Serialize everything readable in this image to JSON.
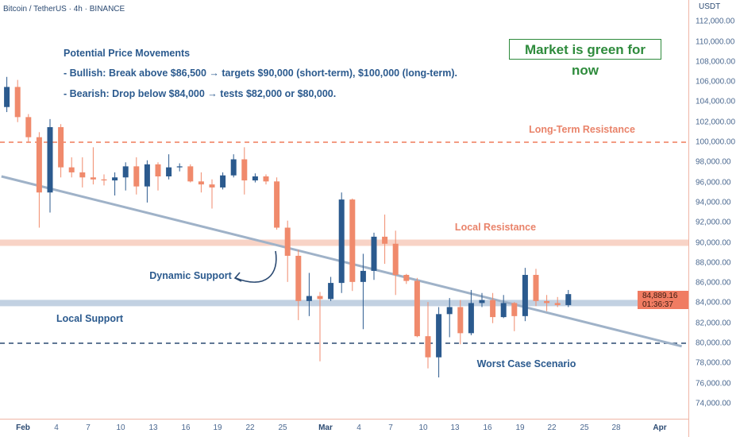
{
  "header": {
    "symbol_title": "Bitcoin / TetherUS · 4h · BINANCE"
  },
  "notes": {
    "title": "Potential Price Movements",
    "bullish": "- Bullish: Break above $86,500 → targets $90,000 (short-term), $100,000 (long-term).",
    "bearish": "- Bearish: Drop below $84,000 → tests $82,000 or $80,000."
  },
  "callout": {
    "text": "Market is green for now",
    "color": "#2e8b3c"
  },
  "labels": {
    "long_term_resistance": "Long-Term Resistance",
    "local_resistance": "Local Resistance",
    "dynamic_support": "Dynamic Support",
    "local_support": "Local Support",
    "worst_case": "Worst Case Scenario"
  },
  "price_axis": {
    "unit": "USDT",
    "ticks": [
      "112,000.00",
      "110,000.00",
      "108,000.00",
      "106,000.00",
      "104,000.00",
      "102,000.00",
      "100,000.00",
      "98,000.00",
      "96,000.00",
      "94,000.00",
      "92,000.00",
      "90,000.00",
      "88,000.00",
      "86,000.00",
      "84,000.00",
      "82,000.00",
      "80,000.00",
      "78,000.00",
      "76,000.00",
      "74,000.00"
    ],
    "current_price": "84,889.16",
    "countdown": "01:36:37"
  },
  "time_axis": {
    "ticks": [
      "Feb",
      "4",
      "7",
      "10",
      "13",
      "16",
      "19",
      "22",
      "25",
      "Mar",
      "4",
      "7",
      "10",
      "13",
      "16",
      "19",
      "22",
      "25",
      "28",
      "Apr"
    ]
  },
  "colors": {
    "up": "#2b5a8e",
    "down": "#f08a6c",
    "resistance": "#ef7c5a",
    "support": "#2b4a72",
    "trendline": "#9fb2c8"
  },
  "chart_data": {
    "type": "candlestick",
    "title": "Bitcoin / TetherUS · 4h · BINANCE",
    "ylim": [
      73000,
      113000
    ],
    "grid": false,
    "candles": [
      {
        "d": "Jan 30",
        "o": 103500,
        "h": 106500,
        "l": 103000,
        "c": 105500
      },
      {
        "d": "Jan 31",
        "o": 105500,
        "h": 106200,
        "l": 102000,
        "c": 102500
      },
      {
        "d": "Feb 1",
        "o": 102500,
        "h": 102800,
        "l": 100000,
        "c": 100500
      },
      {
        "d": "Feb 2",
        "o": 100500,
        "h": 101000,
        "l": 91500,
        "c": 95000
      },
      {
        "d": "Feb 3",
        "o": 95000,
        "h": 102300,
        "l": 93000,
        "c": 101500
      },
      {
        "d": "Feb 4",
        "o": 101500,
        "h": 101800,
        "l": 96500,
        "c": 97500
      },
      {
        "d": "Feb 5",
        "o": 97500,
        "h": 98500,
        "l": 96500,
        "c": 97000
      },
      {
        "d": "Feb 6",
        "o": 97000,
        "h": 98500,
        "l": 95500,
        "c": 96500
      },
      {
        "d": "Feb 7",
        "o": 96500,
        "h": 99500,
        "l": 95800,
        "c": 96300
      },
      {
        "d": "Feb 8",
        "o": 96300,
        "h": 96800,
        "l": 95700,
        "c": 96200
      },
      {
        "d": "Feb 9",
        "o": 96200,
        "h": 97000,
        "l": 94700,
        "c": 96500
      },
      {
        "d": "Feb 10",
        "o": 96500,
        "h": 98000,
        "l": 95200,
        "c": 97600
      },
      {
        "d": "Feb 11",
        "o": 97600,
        "h": 98500,
        "l": 94800,
        "c": 95600
      },
      {
        "d": "Feb 12",
        "o": 95600,
        "h": 98200,
        "l": 94000,
        "c": 97800
      },
      {
        "d": "Feb 13",
        "o": 97800,
        "h": 98000,
        "l": 95200,
        "c": 96600
      },
      {
        "d": "Feb 14",
        "o": 96600,
        "h": 98800,
        "l": 96300,
        "c": 97500
      },
      {
        "d": "Feb 15",
        "o": 97500,
        "h": 97900,
        "l": 97100,
        "c": 97600
      },
      {
        "d": "Feb 16",
        "o": 97600,
        "h": 97800,
        "l": 96000,
        "c": 96100
      },
      {
        "d": "Feb 17",
        "o": 96100,
        "h": 97000,
        "l": 95000,
        "c": 95800
      },
      {
        "d": "Feb 18",
        "o": 95800,
        "h": 96300,
        "l": 93400,
        "c": 95500
      },
      {
        "d": "Feb 19",
        "o": 95500,
        "h": 97000,
        "l": 95300,
        "c": 96700
      },
      {
        "d": "Feb 20",
        "o": 96700,
        "h": 98800,
        "l": 96500,
        "c": 98300
      },
      {
        "d": "Feb 21",
        "o": 98300,
        "h": 99500,
        "l": 94800,
        "c": 96200
      },
      {
        "d": "Feb 22",
        "o": 96200,
        "h": 96900,
        "l": 96000,
        "c": 96600
      },
      {
        "d": "Feb 23",
        "o": 96600,
        "h": 96800,
        "l": 95800,
        "c": 96100
      },
      {
        "d": "Feb 24",
        "o": 96100,
        "h": 96500,
        "l": 91300,
        "c": 91500
      },
      {
        "d": "Feb 25",
        "o": 91500,
        "h": 92200,
        "l": 86100,
        "c": 88700
      },
      {
        "d": "Feb 26",
        "o": 88700,
        "h": 89300,
        "l": 82300,
        "c": 84200
      },
      {
        "d": "Feb 27",
        "o": 84200,
        "h": 87000,
        "l": 82700,
        "c": 84700
      },
      {
        "d": "Feb 28",
        "o": 84700,
        "h": 85100,
        "l": 78200,
        "c": 84400
      },
      {
        "d": "Mar 1",
        "o": 84400,
        "h": 86600,
        "l": 84200,
        "c": 86000
      },
      {
        "d": "Mar 2",
        "o": 86000,
        "h": 95000,
        "l": 85000,
        "c": 94300
      },
      {
        "d": "Mar 3",
        "o": 94300,
        "h": 94400,
        "l": 85200,
        "c": 86100
      },
      {
        "d": "Mar 4",
        "o": 86100,
        "h": 88900,
        "l": 81400,
        "c": 87200
      },
      {
        "d": "Mar 5",
        "o": 87200,
        "h": 91000,
        "l": 86300,
        "c": 90600
      },
      {
        "d": "Mar 6",
        "o": 90600,
        "h": 92800,
        "l": 87900,
        "c": 89900
      },
      {
        "d": "Mar 7",
        "o": 89900,
        "h": 91200,
        "l": 84800,
        "c": 86800
      },
      {
        "d": "Mar 8",
        "o": 86800,
        "h": 86900,
        "l": 85900,
        "c": 86200
      },
      {
        "d": "Mar 9",
        "o": 86200,
        "h": 86500,
        "l": 80600,
        "c": 80700
      },
      {
        "d": "Mar 10",
        "o": 80700,
        "h": 84100,
        "l": 77500,
        "c": 78600
      },
      {
        "d": "Mar 11",
        "o": 78600,
        "h": 83600,
        "l": 76600,
        "c": 82900
      },
      {
        "d": "Mar 12",
        "o": 82900,
        "h": 84500,
        "l": 80600,
        "c": 83600
      },
      {
        "d": "Mar 13",
        "o": 83600,
        "h": 84300,
        "l": 79900,
        "c": 81000
      },
      {
        "d": "Mar 14",
        "o": 81000,
        "h": 85300,
        "l": 80800,
        "c": 84000
      },
      {
        "d": "Mar 15",
        "o": 84000,
        "h": 85000,
        "l": 83600,
        "c": 84300
      },
      {
        "d": "Mar 16",
        "o": 84300,
        "h": 85000,
        "l": 82000,
        "c": 82600
      },
      {
        "d": "Mar 17",
        "o": 82600,
        "h": 84800,
        "l": 82500,
        "c": 84000
      },
      {
        "d": "Mar 18",
        "o": 84000,
        "h": 84100,
        "l": 81200,
        "c": 82700
      },
      {
        "d": "Mar 19",
        "o": 82700,
        "h": 87500,
        "l": 82200,
        "c": 86800
      },
      {
        "d": "Mar 20",
        "o": 86800,
        "h": 87400,
        "l": 83700,
        "c": 84200
      },
      {
        "d": "Mar 21",
        "o": 84200,
        "h": 84800,
        "l": 83200,
        "c": 84000
      },
      {
        "d": "Mar 22",
        "o": 84000,
        "h": 84600,
        "l": 83600,
        "c": 83800
      },
      {
        "d": "Mar 23",
        "o": 83800,
        "h": 85300,
        "l": 83600,
        "c": 84889.16
      }
    ],
    "levels": [
      {
        "name": "Long-Term Resistance",
        "price": 100000,
        "style": "dashed",
        "color": "#ef7c5a"
      },
      {
        "name": "Local Resistance",
        "price": 90000,
        "style": "band",
        "color": "#f8d3c6"
      },
      {
        "name": "Local Support",
        "price": 84000,
        "style": "band",
        "color": "#c2d1e2"
      },
      {
        "name": "Worst Case Scenario",
        "price": 80000,
        "style": "dashed",
        "color": "#2b4a72"
      }
    ],
    "trendline": {
      "name": "Dynamic Support",
      "from": {
        "d": "Jan 30",
        "price": 96600
      },
      "to": {
        "d": "Apr 3",
        "price": 79700
      }
    }
  }
}
